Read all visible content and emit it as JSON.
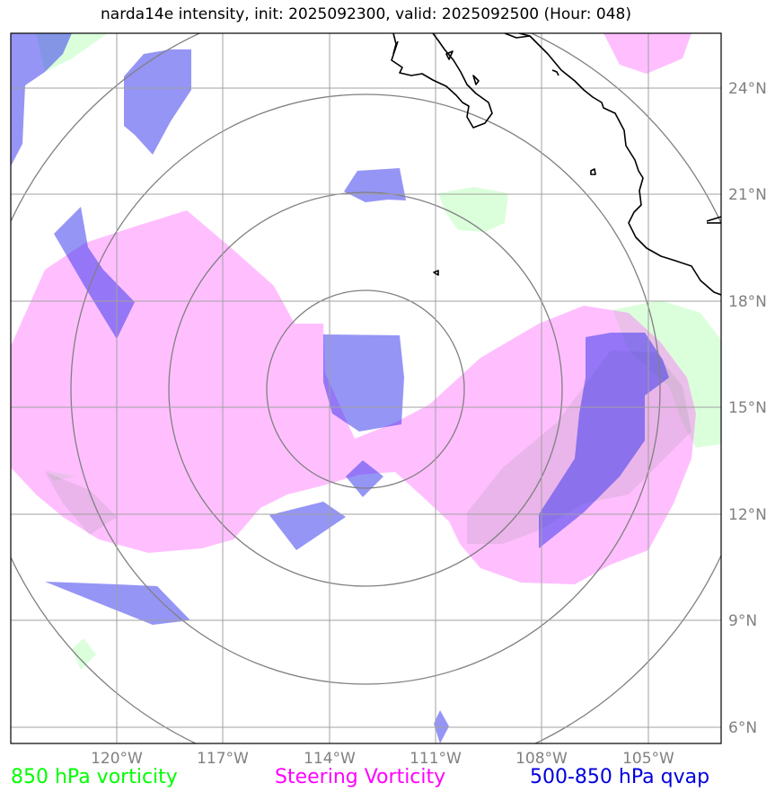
{
  "title": "narda14e intensity, init: 2025092300, valid: 2025092500 (Hour: 048)",
  "lon_labels": [
    "120°W",
    "117°W",
    "114°W",
    "111°W",
    "108°W",
    "105°W"
  ],
  "lat_labels": [
    "24°N",
    "21°N",
    "18°N",
    "15°N",
    "12°N",
    "9°N",
    "6°N"
  ],
  "legend": {
    "vort850": "850 hPa vorticity",
    "steering": "Steering Vorticity",
    "qvap": "500-850 hPa qvap"
  },
  "colors": {
    "vort850": "#00ff00",
    "steering": "#ff00ff",
    "qvap": "#0000dd",
    "grid": "#808080",
    "coast": "#000000"
  },
  "map": {
    "lon_range": [
      -123,
      -102.9
    ],
    "lat_range": [
      5.5,
      25.5
    ],
    "storm_center": {
      "lon": -113.0,
      "lat": 15.8
    },
    "range_ring_count": 4
  }
}
